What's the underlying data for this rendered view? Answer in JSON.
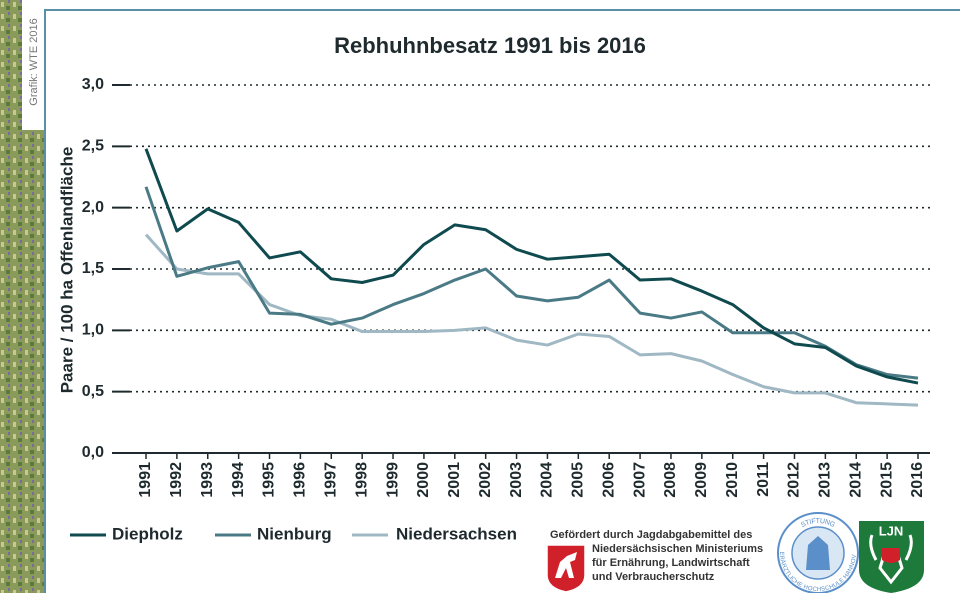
{
  "chart_data": {
    "type": "line",
    "title": "Rebhuhnbesatz 1991 bis 2016",
    "source": "Grafik: WTE 2016",
    "y_label": "Paare / 100 ha Offenlandfläche",
    "categories": [
      "1991",
      "1992",
      "1993",
      "1994",
      "1995",
      "1996",
      "1997",
      "1998",
      "1999",
      "2000",
      "2001",
      "2002",
      "2003",
      "2004",
      "2005",
      "2006",
      "2007",
      "2008",
      "2009",
      "2010",
      "2011",
      "2012",
      "2013",
      "2014",
      "2015",
      "2016"
    ],
    "series": [
      {
        "name": "Diepholz",
        "color": "#0f4a4f",
        "values": [
          2.48,
          1.81,
          1.99,
          1.88,
          1.59,
          1.64,
          1.42,
          1.39,
          1.45,
          1.7,
          1.86,
          1.82,
          1.66,
          1.58,
          1.6,
          1.62,
          1.41,
          1.42,
          1.32,
          1.21,
          1.02,
          0.89,
          0.86,
          0.71,
          0.62,
          0.57
        ]
      },
      {
        "name": "Nienburg",
        "color": "#4a7a85",
        "values": [
          2.17,
          1.44,
          1.51,
          1.56,
          1.14,
          1.13,
          1.05,
          1.1,
          1.21,
          1.3,
          1.41,
          1.5,
          1.28,
          1.24,
          1.27,
          1.41,
          1.14,
          1.1,
          1.15,
          0.98,
          0.98,
          0.98,
          0.87,
          0.72,
          0.64,
          0.61
        ]
      },
      {
        "name": "Niedersachsen",
        "color": "#9fb8c3",
        "values": [
          1.78,
          1.5,
          1.46,
          1.46,
          1.21,
          1.12,
          1.09,
          0.99,
          0.99,
          0.99,
          1.0,
          1.02,
          0.92,
          0.88,
          0.97,
          0.95,
          0.8,
          0.81,
          0.75,
          0.64,
          0.54,
          0.49,
          0.49,
          0.41,
          0.4,
          0.39
        ]
      }
    ],
    "ylim": [
      0,
      3
    ],
    "yticks": [
      {
        "value": 0,
        "label": "0,0"
      },
      {
        "value": 0.5,
        "label": "0,5"
      },
      {
        "value": 1,
        "label": "1,0"
      },
      {
        "value": 1.5,
        "label": "1,5"
      },
      {
        "value": 2,
        "label": "2,0"
      },
      {
        "value": 2.5,
        "label": "2,5"
      },
      {
        "value": 3,
        "label": "3,0"
      }
    ],
    "grid": true
  },
  "footer": {
    "funding": [
      "Gefördert durch Jagdabgabemittel des",
      "Niedersächsischen Ministeriums",
      "für Ernährung, Landwirtschaft",
      "und Verbraucherschutz"
    ],
    "logos": [
      "STIFTUNG",
      "TIERÄRZTLICHE HOCHSCHULE HANNOVER",
      "LJN"
    ]
  }
}
